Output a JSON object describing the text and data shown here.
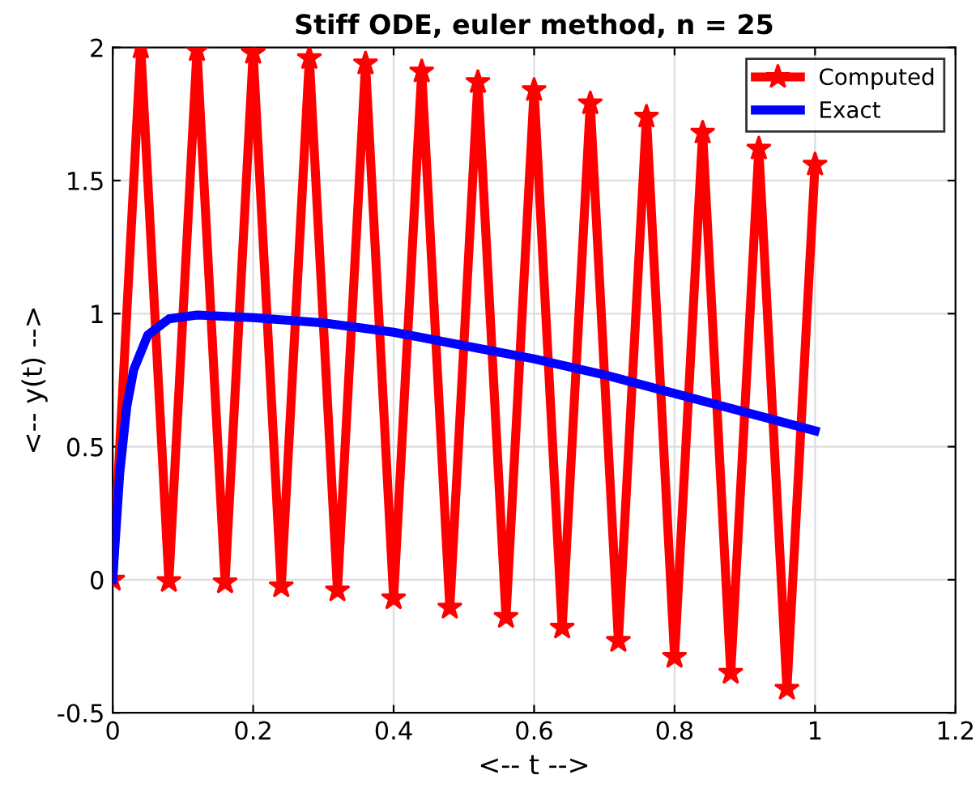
{
  "chart_data": {
    "type": "line",
    "title": "Stiff ODE, euler method, n = 25",
    "xlabel": "<-- t -->",
    "ylabel": "<-- y(t) -->",
    "series": [
      {
        "name": "Computed",
        "color": "#ff0000",
        "marker": "star",
        "x": [
          0,
          0.04,
          0.08,
          0.12,
          0.16,
          0.2,
          0.24,
          0.28,
          0.32,
          0.36,
          0.4,
          0.44,
          0.48,
          0.52,
          0.56,
          0.6,
          0.64,
          0.68,
          0.72,
          0.76,
          0.8,
          0.84,
          0.88,
          0.92,
          0.96,
          1.0
        ],
        "values": [
          0,
          2.0,
          -0.005,
          1.99,
          -0.01,
          1.98,
          -0.025,
          1.96,
          -0.04,
          1.94,
          -0.07,
          1.91,
          -0.105,
          1.87,
          -0.14,
          1.84,
          -0.18,
          1.79,
          -0.23,
          1.74,
          -0.29,
          1.68,
          -0.35,
          1.62,
          -0.41,
          1.56
        ]
      },
      {
        "name": "Exact",
        "color": "#0000ff",
        "marker": "none",
        "x": [
          0,
          0.01,
          0.02,
          0.03,
          0.05,
          0.08,
          0.12,
          0.2,
          0.3,
          0.4,
          0.5,
          0.6,
          0.7,
          0.8,
          0.9,
          1.0
        ],
        "values": [
          0,
          0.4,
          0.65,
          0.79,
          0.92,
          0.98,
          0.995,
          0.985,
          0.965,
          0.93,
          0.88,
          0.83,
          0.77,
          0.7,
          0.63,
          0.56
        ]
      }
    ],
    "xlim": [
      0,
      1.2
    ],
    "xticks": [
      0,
      0.2,
      0.4,
      0.6,
      0.8,
      1,
      1.2
    ],
    "ylim": [
      -0.5,
      2
    ],
    "yticks": [
      {
        "value": -0.5,
        "label": "-0.5"
      },
      0,
      0.5,
      1,
      1.5,
      2
    ],
    "grid": true,
    "legend": "top right",
    "line_style": "solid"
  }
}
